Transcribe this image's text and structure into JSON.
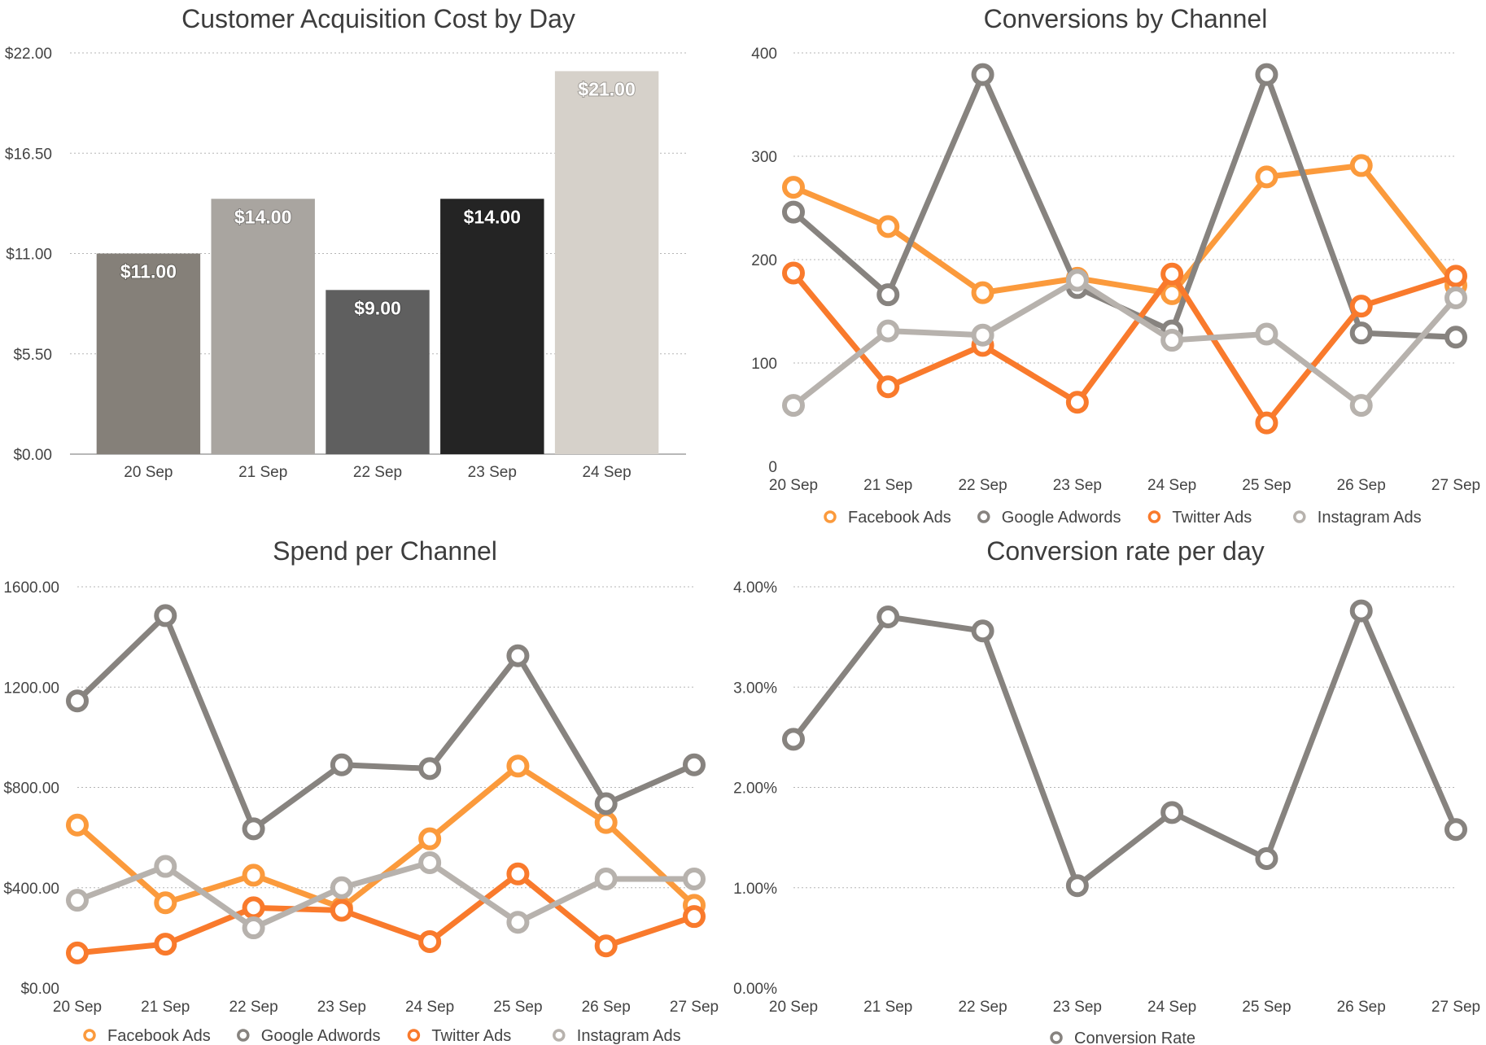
{
  "chart_data": [
    {
      "type": "bar",
      "title": "Customer Acquisition Cost by Day",
      "categories": [
        "20 Sep",
        "21 Sep",
        "22 Sep",
        "23 Sep",
        "24 Sep"
      ],
      "values": [
        11.0,
        14.0,
        9.0,
        14.0,
        21.0
      ],
      "value_labels": [
        "$11.00",
        "$14.00",
        "$9.00",
        "$14.00",
        "$21.00"
      ],
      "bar_colors": [
        "#858079",
        "#a9a5a0",
        "#5f5f5f",
        "#242424",
        "#d6d1ca"
      ],
      "ylim": [
        0,
        22
      ],
      "yticks": [
        0,
        5.5,
        11,
        16.5,
        22
      ],
      "ytick_labels": [
        "$0.00",
        "$5.50",
        "$11.00",
        "$16.50",
        "$22.00"
      ],
      "grid": true
    },
    {
      "type": "line",
      "title": "Conversions by Channel",
      "x": [
        "20 Sep",
        "21 Sep",
        "22 Sep",
        "23 Sep",
        "24 Sep",
        "25 Sep",
        "26 Sep",
        "27 Sep"
      ],
      "ylim": [
        0,
        400
      ],
      "yticks": [
        0,
        100,
        200,
        300,
        400
      ],
      "ytick_labels": [
        "0",
        "100",
        "200",
        "300",
        "400"
      ],
      "grid": true,
      "legend": "bottom",
      "series": [
        {
          "name": "Facebook Ads",
          "color": "#fb9a3c",
          "values": [
            270,
            232,
            168,
            182,
            167,
            280,
            291,
            175
          ]
        },
        {
          "name": "Google Adwords",
          "color": "#87837f",
          "values": [
            246,
            166,
            379,
            173,
            131,
            379,
            129,
            125
          ]
        },
        {
          "name": "Twitter Ads",
          "color": "#f97a2c",
          "values": [
            187,
            77,
            117,
            62,
            186,
            42,
            155,
            184
          ]
        },
        {
          "name": "Instagram Ads",
          "color": "#b7b2ad",
          "values": [
            59,
            131,
            127,
            180,
            122,
            128,
            59,
            163
          ]
        }
      ]
    },
    {
      "type": "line",
      "title": "Spend per Channel",
      "x": [
        "20 Sep",
        "21 Sep",
        "22 Sep",
        "23 Sep",
        "24 Sep",
        "25 Sep",
        "26 Sep",
        "27 Sep"
      ],
      "ylim": [
        0,
        1600
      ],
      "yticks": [
        0,
        400,
        800,
        1200,
        1600
      ],
      "ytick_labels": [
        "$0.00",
        "$400.00",
        "$800.00",
        "1200.00",
        "1600.00"
      ],
      "grid": true,
      "legend": "bottom",
      "series": [
        {
          "name": "Facebook Ads",
          "color": "#fb9a3c",
          "values": [
            650,
            340,
            450,
            320,
            595,
            885,
            660,
            330
          ]
        },
        {
          "name": "Google Adwords",
          "color": "#87837f",
          "values": [
            1145,
            1485,
            635,
            890,
            875,
            1325,
            735,
            890
          ]
        },
        {
          "name": "Twitter Ads",
          "color": "#f97a2c",
          "values": [
            140,
            175,
            320,
            310,
            185,
            455,
            168,
            285
          ]
        },
        {
          "name": "Instagram Ads",
          "color": "#b7b2ad",
          "values": [
            350,
            485,
            240,
            400,
            500,
            262,
            435,
            435
          ]
        }
      ]
    },
    {
      "type": "line",
      "title": "Conversion rate per day",
      "x": [
        "20 Sep",
        "21 Sep",
        "22 Sep",
        "23 Sep",
        "24 Sep",
        "25 Sep",
        "26 Sep",
        "27 Sep"
      ],
      "ylim": [
        0,
        4
      ],
      "yticks": [
        0,
        1,
        2,
        3,
        4
      ],
      "ytick_labels": [
        "0.00%",
        "1.00%",
        "2.00%",
        "3.00%",
        "4.00%"
      ],
      "grid": true,
      "legend": "bottom",
      "series": [
        {
          "name": "Conversion Rate",
          "color": "#87837f",
          "values": [
            2.48,
            3.7,
            3.56,
            1.02,
            1.75,
            1.29,
            3.76,
            1.58
          ]
        }
      ]
    }
  ]
}
